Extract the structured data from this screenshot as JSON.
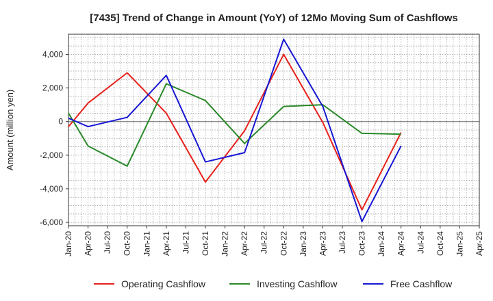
{
  "chart_data": {
    "type": "line",
    "title": "[7435]  Trend of Change in Amount (YoY) of 12Mo Moving Sum of Cashflows",
    "xlabel": "",
    "ylabel": "Amount (million yen)",
    "ylim": [
      -6200,
      5200
    ],
    "yticks": [
      4000,
      2000,
      0,
      -2000,
      -4000,
      -6000
    ],
    "ytick_labels": [
      "4,000",
      "2,000",
      "0",
      "-2,000",
      "-4,000",
      "-6,000"
    ],
    "categories": [
      "Jan-20",
      "Apr-20",
      "Jul-20",
      "Oct-20",
      "Jan-21",
      "Apr-21",
      "Jul-21",
      "Oct-21",
      "Jan-22",
      "Apr-22",
      "Jul-22",
      "Oct-22",
      "Jan-23",
      "Apr-23",
      "Jul-23",
      "Oct-23",
      "Jan-24",
      "Apr-24",
      "Jul-24",
      "Oct-24",
      "Jan-25",
      "Apr-25"
    ],
    "grid": true,
    "legend_position": "bottom",
    "series": [
      {
        "name": "Operating Cashflow",
        "color": "#e8201b",
        "values": [
          -300,
          1100,
          null,
          2900,
          null,
          500,
          null,
          -3600,
          null,
          -550,
          null,
          4000,
          null,
          -50,
          null,
          -5250,
          null,
          -650,
          null,
          null,
          null,
          null
        ]
      },
      {
        "name": "Investing Cashflow",
        "color": "#2a8a2a",
        "values": [
          500,
          -1450,
          null,
          -2650,
          null,
          2250,
          null,
          1250,
          null,
          -1300,
          null,
          900,
          null,
          1000,
          null,
          -700,
          null,
          -750,
          null,
          null,
          null,
          null
        ]
      },
      {
        "name": "Free Cashflow",
        "color": "#1616d4",
        "values": [
          200,
          -300,
          null,
          250,
          null,
          2750,
          null,
          -2400,
          null,
          -1850,
          null,
          4900,
          null,
          900,
          null,
          -5950,
          null,
          -1450,
          null,
          null,
          null,
          null
        ]
      }
    ]
  }
}
